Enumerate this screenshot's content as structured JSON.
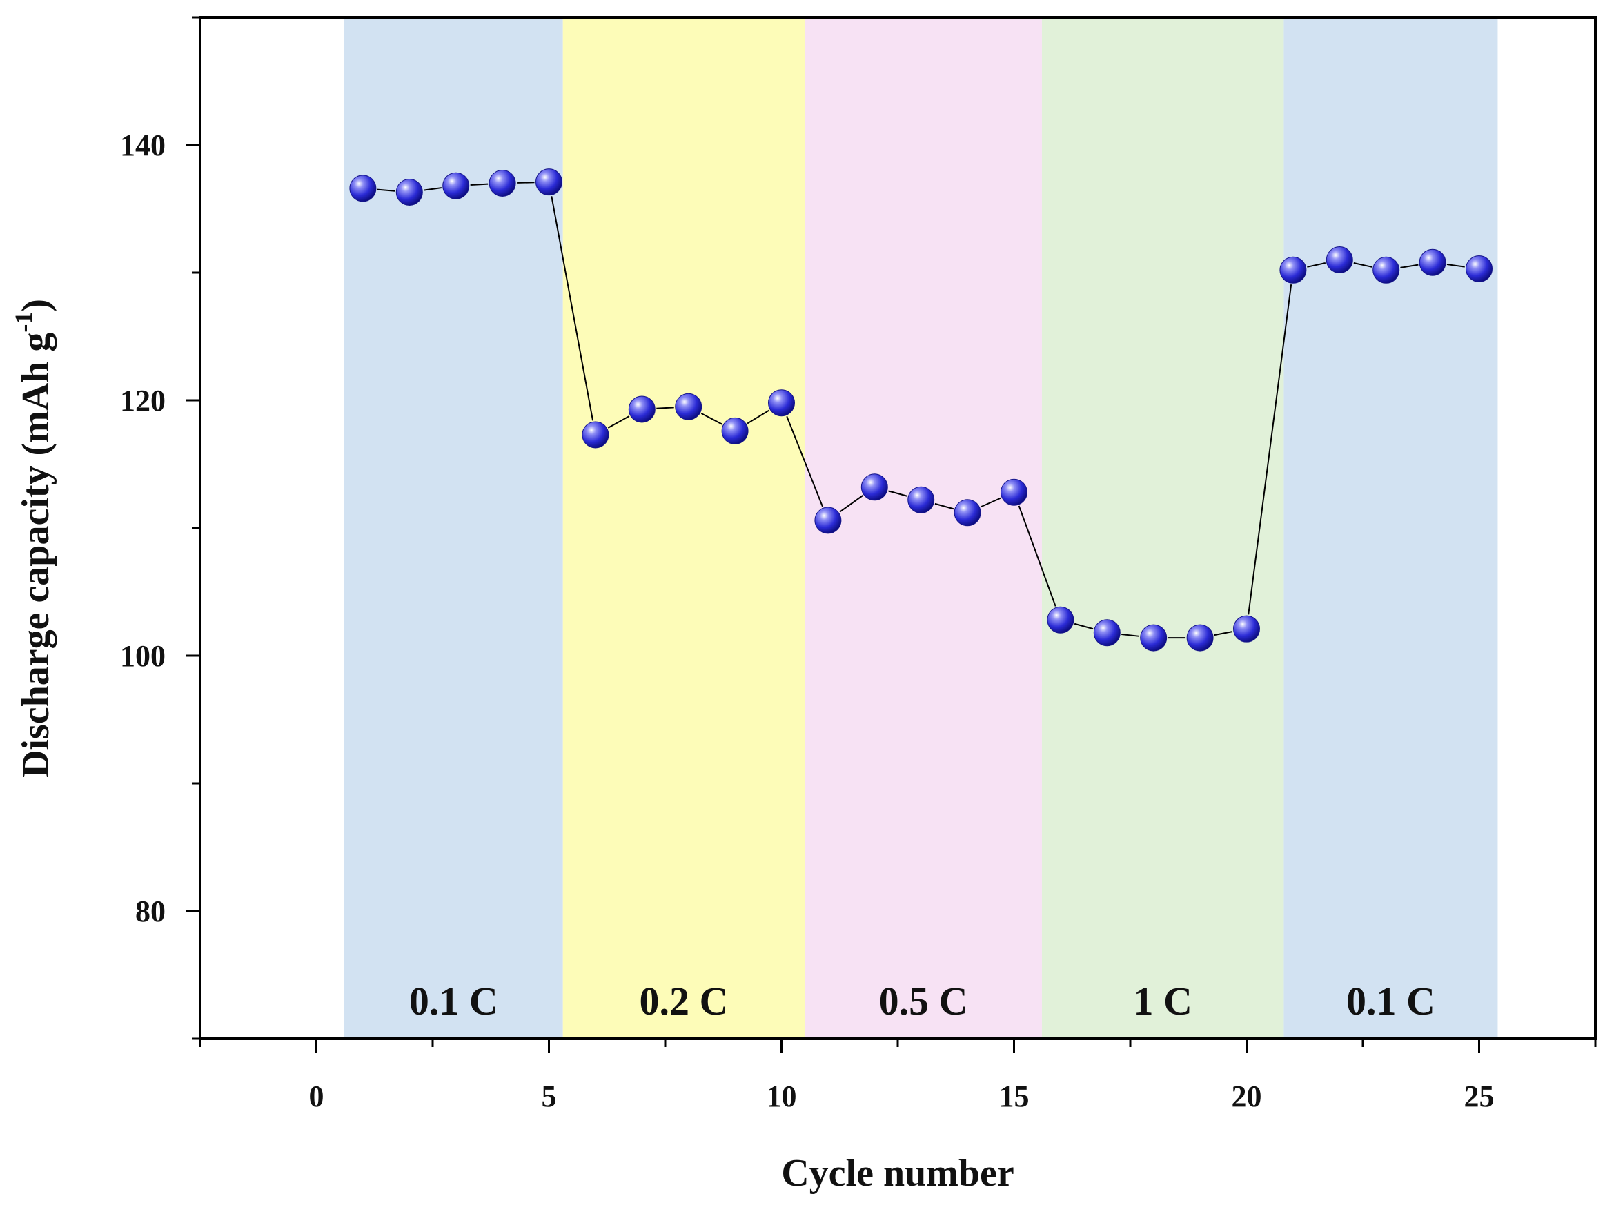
{
  "chart_data": {
    "type": "scatter",
    "title": "",
    "xlabel": "Cycle number",
    "ylabel": "Discharge capacity (mAh g",
    "ylabel_superscript": "-1",
    "ylabel_close": ")",
    "xlim": [
      -2.5,
      27.5
    ],
    "ylim": [
      70,
      150
    ],
    "xticks": [
      0,
      5,
      10,
      15,
      20,
      25
    ],
    "yticks": [
      80,
      100,
      120,
      140
    ],
    "grid": false,
    "series": [
      {
        "name": "Discharge capacity",
        "marker_color": "#2b2bd6",
        "line_color": "#000000",
        "x": [
          1,
          2,
          3,
          4,
          5,
          6,
          7,
          8,
          9,
          10,
          11,
          12,
          13,
          14,
          15,
          16,
          17,
          18,
          19,
          20,
          21,
          22,
          23,
          24,
          25
        ],
        "y": [
          136.6,
          136.3,
          136.8,
          137.0,
          137.1,
          117.3,
          119.3,
          119.5,
          117.6,
          119.8,
          110.6,
          113.2,
          112.2,
          111.2,
          112.8,
          102.8,
          101.8,
          101.4,
          101.4,
          102.1,
          130.2,
          131.0,
          130.2,
          130.8,
          130.3
        ]
      }
    ],
    "bands": [
      {
        "label": "0.1 C",
        "x_start": 0.6,
        "x_end": 5.3,
        "color": "#d2e2f2"
      },
      {
        "label": "0.2 C",
        "x_start": 5.3,
        "x_end": 10.5,
        "color": "#fdfcb8"
      },
      {
        "label": "0.5 C",
        "x_start": 10.5,
        "x_end": 15.6,
        "color": "#f7e2f4"
      },
      {
        "label": "1 C",
        "x_start": 15.6,
        "x_end": 20.8,
        "color": "#e1f1d9"
      },
      {
        "label": "0.1 C",
        "x_start": 20.8,
        "x_end": 25.4,
        "color": "#d2e2f2"
      }
    ]
  }
}
